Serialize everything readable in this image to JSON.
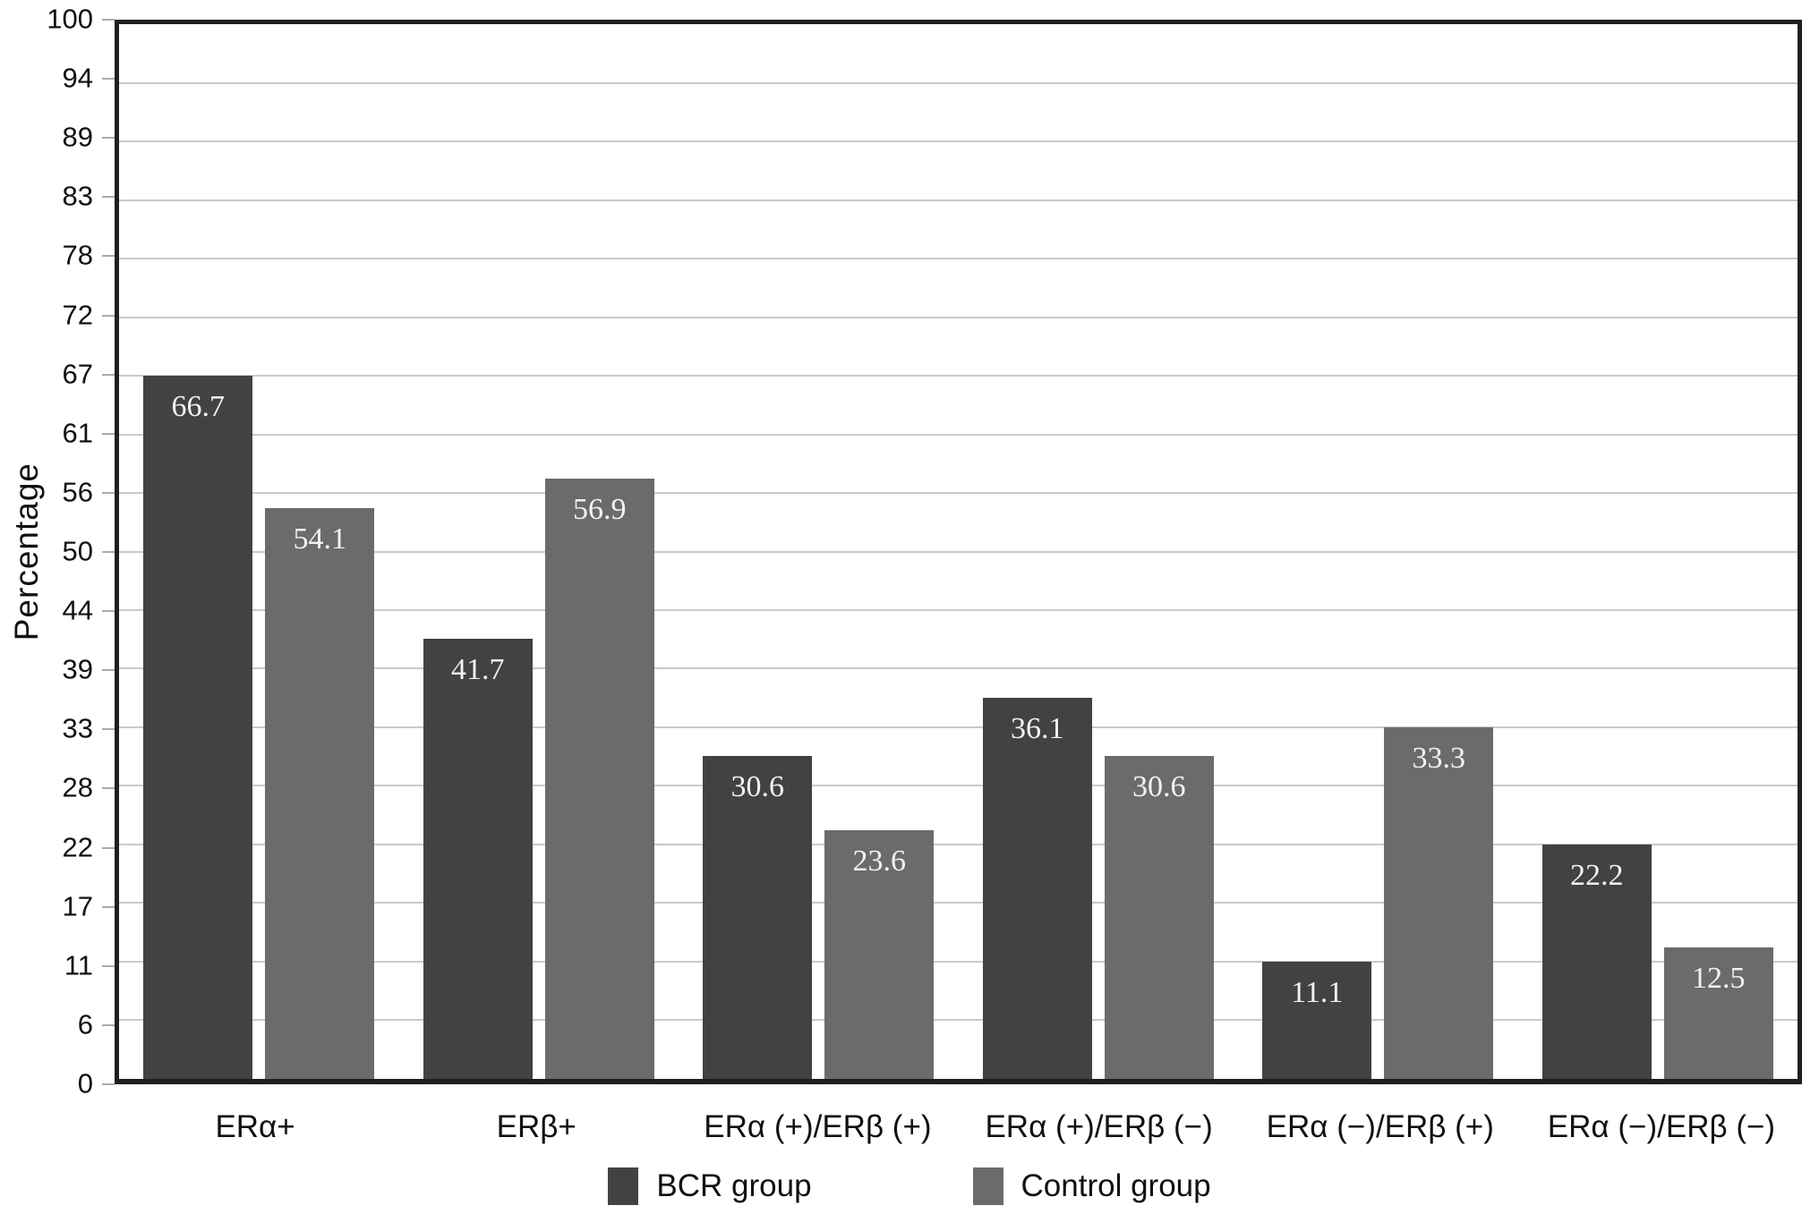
{
  "chart_data": {
    "type": "bar",
    "title": "",
    "xlabel": "",
    "ylabel": "Percentage",
    "ylim": [
      0,
      100
    ],
    "grid": "horizontal",
    "legend_position": "bottom-center",
    "categories": [
      "ERα+",
      "ERβ+",
      "ERα (+)/ERβ (+)",
      "ERα (+)/ERβ (−)",
      "ERα (−)/ERβ (+)",
      "ERα (−)/ERβ (−)"
    ],
    "series": [
      {
        "name": "BCR group",
        "color": "#424242",
        "values": [
          66.7,
          41.7,
          30.6,
          36.1,
          11.1,
          22.2
        ]
      },
      {
        "name": "Control group",
        "color": "#6b6b6b",
        "values": [
          54.1,
          56.9,
          23.6,
          30.6,
          33.3,
          12.5
        ]
      }
    ],
    "value_labels": {
      "position": "inside-top",
      "color": "#f2f2f2"
    },
    "yticks": [
      {
        "value": 100,
        "label": "100"
      },
      {
        "value": 94.44,
        "label": "94"
      },
      {
        "value": 88.89,
        "label": "89"
      },
      {
        "value": 83.33,
        "label": "83"
      },
      {
        "value": 77.78,
        "label": "78"
      },
      {
        "value": 72.22,
        "label": "72"
      },
      {
        "value": 66.67,
        "label": "67"
      },
      {
        "value": 61.11,
        "label": "61"
      },
      {
        "value": 55.56,
        "label": "56"
      },
      {
        "value": 50,
        "label": "50"
      },
      {
        "value": 44.44,
        "label": "44"
      },
      {
        "value": 38.89,
        "label": "39"
      },
      {
        "value": 33.33,
        "label": "33"
      },
      {
        "value": 27.78,
        "label": "28"
      },
      {
        "value": 22.22,
        "label": "22"
      },
      {
        "value": 16.67,
        "label": "17"
      },
      {
        "value": 11.11,
        "label": "11"
      },
      {
        "value": 5.56,
        "label": "6"
      },
      {
        "value": 0,
        "label": "0"
      }
    ],
    "colors": {
      "axis_border": "#1f1f1f",
      "gridline": "#c9c9c9",
      "tick_mark": "#aaaaaa",
      "background": "#ffffff",
      "text": "#111111"
    }
  }
}
